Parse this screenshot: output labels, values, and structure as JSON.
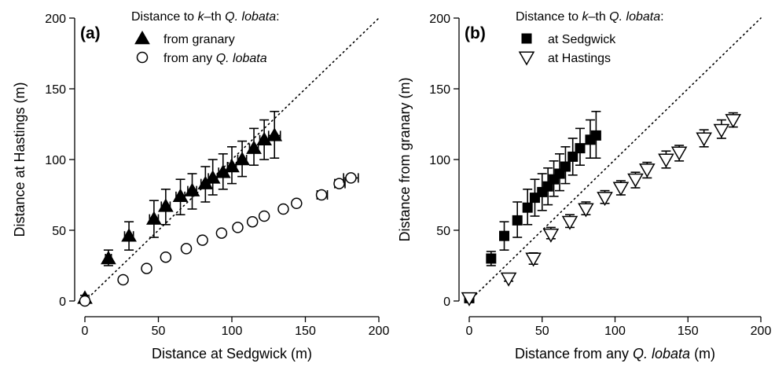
{
  "chart_data": [
    {
      "type": "scatter",
      "panel_label": "(a)",
      "xlabel": "Distance at Sedgwick (m)",
      "ylabel": "Distance at Hastings (m)",
      "xlim": [
        0,
        200
      ],
      "ylim": [
        0,
        200
      ],
      "xticks": [
        "0",
        "50",
        "100",
        "150",
        "200"
      ],
      "yticks": [
        "0",
        "50",
        "100",
        "150",
        "200"
      ],
      "reference_line": "1:1 dotted",
      "grid": false,
      "legend": {
        "placement": "top-left",
        "title_parts": [
          "Distance to ",
          "k",
          "–th ",
          "Q. lobata",
          ":"
        ],
        "entries": [
          {
            "marker": "filled-triangle",
            "label_parts": [
              "from granary"
            ]
          },
          {
            "marker": "open-circle",
            "label_parts": [
              "from any ",
              "Q. lobata"
            ]
          }
        ]
      },
      "series": [
        {
          "name": "from granary",
          "marker": "filled-triangle",
          "points": [
            {
              "x": 0,
              "y": 2,
              "ylo": 0,
              "yhi": 4
            },
            {
              "x": 16,
              "y": 30,
              "ylo": 25,
              "yhi": 36,
              "xlo": 14,
              "xhi": 18
            },
            {
              "x": 30,
              "y": 46,
              "ylo": 36,
              "yhi": 56,
              "xlo": 27,
              "xhi": 33
            },
            {
              "x": 47,
              "y": 58,
              "ylo": 45,
              "yhi": 71,
              "xlo": 44,
              "xhi": 50
            },
            {
              "x": 55,
              "y": 67,
              "ylo": 54,
              "yhi": 79,
              "xlo": 52,
              "xhi": 58
            },
            {
              "x": 65,
              "y": 74,
              "ylo": 61,
              "yhi": 86,
              "xlo": 62,
              "xhi": 68
            },
            {
              "x": 73,
              "y": 78,
              "ylo": 65,
              "yhi": 90,
              "xlo": 70,
              "xhi": 76
            },
            {
              "x": 82,
              "y": 83,
              "ylo": 70,
              "yhi": 95,
              "xlo": 79,
              "xhi": 85
            },
            {
              "x": 87,
              "y": 87,
              "ylo": 75,
              "yhi": 100,
              "xlo": 84,
              "xhi": 90
            },
            {
              "x": 94,
              "y": 91,
              "ylo": 79,
              "yhi": 104,
              "xlo": 91,
              "xhi": 97
            },
            {
              "x": 100,
              "y": 95,
              "ylo": 83,
              "yhi": 109,
              "xlo": 97,
              "xhi": 103
            },
            {
              "x": 107,
              "y": 100,
              "ylo": 88,
              "yhi": 113,
              "xlo": 104,
              "xhi": 110
            },
            {
              "x": 115,
              "y": 108,
              "ylo": 96,
              "yhi": 122,
              "xlo": 112,
              "xhi": 118
            },
            {
              "x": 122,
              "y": 114,
              "ylo": 100,
              "yhi": 128,
              "xlo": 119,
              "xhi": 125
            },
            {
              "x": 129,
              "y": 117,
              "ylo": 101,
              "yhi": 134,
              "xlo": 125,
              "xhi": 133
            }
          ]
        },
        {
          "name": "from any Q. lobata",
          "marker": "open-circle",
          "points": [
            {
              "x": 0,
              "y": 0
            },
            {
              "x": 26,
              "y": 15
            },
            {
              "x": 42,
              "y": 23
            },
            {
              "x": 55,
              "y": 31
            },
            {
              "x": 69,
              "y": 37
            },
            {
              "x": 80,
              "y": 43
            },
            {
              "x": 93,
              "y": 48
            },
            {
              "x": 104,
              "y": 52
            },
            {
              "x": 114,
              "y": 56
            },
            {
              "x": 122,
              "y": 60
            },
            {
              "x": 135,
              "y": 65
            },
            {
              "x": 144,
              "y": 69
            },
            {
              "x": 161,
              "y": 75,
              "xlo": 158,
              "xhi": 165
            },
            {
              "x": 173,
              "y": 83,
              "xlo": 170,
              "xhi": 177
            },
            {
              "x": 181,
              "y": 87,
              "xlo": 176,
              "xhi": 186
            }
          ]
        }
      ]
    },
    {
      "type": "scatter",
      "panel_label": "(b)",
      "xlabel_parts": [
        "Distance from any ",
        "Q. lobata",
        " (m)"
      ],
      "ylabel": "Distance from granary (m)",
      "xlim": [
        0,
        200
      ],
      "ylim": [
        0,
        200
      ],
      "xticks": [
        "0",
        "50",
        "100",
        "150",
        "200"
      ],
      "yticks": [
        "0",
        "50",
        "100",
        "150",
        "200"
      ],
      "reference_line": "1:1 dotted",
      "grid": false,
      "legend": {
        "placement": "top-left",
        "title_parts": [
          "Distance to ",
          "k",
          "–th ",
          "Q. lobata",
          ":"
        ],
        "entries": [
          {
            "marker": "filled-square",
            "label_parts": [
              "at Sedgwick"
            ]
          },
          {
            "marker": "open-triangle-down",
            "label_parts": [
              "at Hastings"
            ]
          }
        ]
      },
      "series": [
        {
          "name": "at Sedgwick",
          "marker": "filled-square",
          "points": [
            {
              "x": 0,
              "y": 2,
              "ylo": 0,
              "yhi": 4
            },
            {
              "x": 15,
              "y": 30,
              "ylo": 25,
              "yhi": 35
            },
            {
              "x": 24,
              "y": 46,
              "ylo": 36,
              "yhi": 56
            },
            {
              "x": 33,
              "y": 57,
              "ylo": 45,
              "yhi": 70
            },
            {
              "x": 40,
              "y": 66,
              "ylo": 54,
              "yhi": 79
            },
            {
              "x": 45,
              "y": 73,
              "ylo": 60,
              "yhi": 86
            },
            {
              "x": 50,
              "y": 77,
              "ylo": 64,
              "yhi": 90
            },
            {
              "x": 54,
              "y": 81,
              "ylo": 68,
              "yhi": 94
            },
            {
              "x": 58,
              "y": 86,
              "ylo": 74,
              "yhi": 99
            },
            {
              "x": 62,
              "y": 90,
              "ylo": 78,
              "yhi": 104
            },
            {
              "x": 66,
              "y": 95,
              "ylo": 83,
              "yhi": 109
            },
            {
              "x": 71,
              "y": 102,
              "ylo": 89,
              "yhi": 115
            },
            {
              "x": 76,
              "y": 108,
              "ylo": 96,
              "yhi": 122
            },
            {
              "x": 83,
              "y": 114,
              "ylo": 101,
              "yhi": 128
            },
            {
              "x": 87,
              "y": 117,
              "ylo": 101,
              "yhi": 134
            }
          ]
        },
        {
          "name": "at Hastings",
          "marker": "open-triangle-down",
          "points": [
            {
              "x": 0,
              "y": 2,
              "ylo": 0,
              "yhi": 4
            },
            {
              "x": 27,
              "y": 16,
              "ylo": 14,
              "yhi": 18
            },
            {
              "x": 44,
              "y": 30,
              "ylo": 26,
              "yhi": 34
            },
            {
              "x": 56,
              "y": 47,
              "ylo": 44,
              "yhi": 52
            },
            {
              "x": 69,
              "y": 56,
              "ylo": 52,
              "yhi": 61
            },
            {
              "x": 80,
              "y": 65,
              "ylo": 61,
              "yhi": 70
            },
            {
              "x": 93,
              "y": 73,
              "ylo": 69,
              "yhi": 78
            },
            {
              "x": 104,
              "y": 80,
              "ylo": 75,
              "yhi": 85
            },
            {
              "x": 114,
              "y": 86,
              "ylo": 80,
              "yhi": 91
            },
            {
              "x": 122,
              "y": 93,
              "ylo": 87,
              "yhi": 98
            },
            {
              "x": 135,
              "y": 100,
              "ylo": 94,
              "yhi": 106
            },
            {
              "x": 144,
              "y": 105,
              "ylo": 99,
              "yhi": 110
            },
            {
              "x": 161,
              "y": 115,
              "ylo": 109,
              "yhi": 121
            },
            {
              "x": 173,
              "y": 121,
              "ylo": 115,
              "yhi": 128
            },
            {
              "x": 181,
              "y": 128,
              "ylo": 123,
              "yhi": 133
            }
          ]
        }
      ]
    }
  ]
}
